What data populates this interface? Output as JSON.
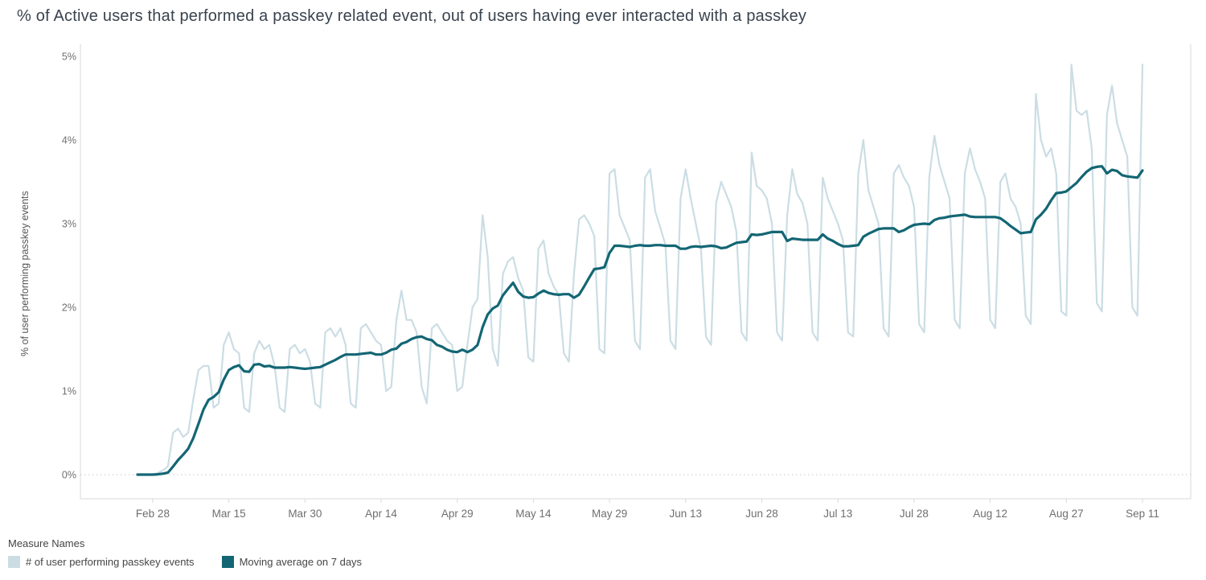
{
  "title": "% of Active users that performed a passkey related event, out of users having ever interacted with a passkey",
  "y_axis": {
    "label": "% of user performing passkey events"
  },
  "legend": {
    "title": "Measure Names"
  },
  "chart_data": {
    "type": "line",
    "title": "% of Active users that performed a passkey related event, out of users having ever interacted with a passkey",
    "xlabel": "",
    "ylabel": "% of user performing passkey events",
    "ylim": [
      0,
      5
    ],
    "y_unit": "percent",
    "grid": "dotted line at 0% only",
    "legend_position": "bottom-left",
    "x_unit": "day",
    "x_start": "Feb 25",
    "x_end": "Sep 11",
    "y_ticks": [
      {
        "value": 0,
        "label": "0%"
      },
      {
        "value": 1,
        "label": "1%"
      },
      {
        "value": 2,
        "label": "2%"
      },
      {
        "value": 3,
        "label": "3%"
      },
      {
        "value": 4,
        "label": "4%"
      },
      {
        "value": 5,
        "label": "5%"
      }
    ],
    "x_ticks": [
      {
        "label": "Feb 28",
        "index": 3
      },
      {
        "label": "Mar 15",
        "index": 18
      },
      {
        "label": "Mar 30",
        "index": 33
      },
      {
        "label": "Apr 14",
        "index": 48
      },
      {
        "label": "Apr 29",
        "index": 63
      },
      {
        "label": "May 14",
        "index": 78
      },
      {
        "label": "May 29",
        "index": 93
      },
      {
        "label": "Jun 13",
        "index": 108
      },
      {
        "label": "Jun 28",
        "index": 123
      },
      {
        "label": "Jul 13",
        "index": 138
      },
      {
        "label": "Jul 28",
        "index": 153
      },
      {
        "label": "Aug 12",
        "index": 168
      },
      {
        "label": "Aug 27",
        "index": 183
      },
      {
        "label": "Sep 11",
        "index": 198
      }
    ],
    "series": [
      {
        "name": "# of user performing passkey events",
        "color": "#cbdde4",
        "values": [
          0,
          0,
          0,
          0,
          0.02,
          0.05,
          0.1,
          0.5,
          0.55,
          0.45,
          0.5,
          0.9,
          1.25,
          1.3,
          1.3,
          0.8,
          0.85,
          1.55,
          1.7,
          1.5,
          1.45,
          0.8,
          0.75,
          1.45,
          1.6,
          1.5,
          1.55,
          1.3,
          0.8,
          0.75,
          1.5,
          1.55,
          1.45,
          1.5,
          1.35,
          0.85,
          0.8,
          1.7,
          1.75,
          1.65,
          1.75,
          1.55,
          0.85,
          0.8,
          1.75,
          1.8,
          1.7,
          1.6,
          1.55,
          1.0,
          1.05,
          1.85,
          2.2,
          1.85,
          1.85,
          1.7,
          1.05,
          0.85,
          1.75,
          1.8,
          1.7,
          1.6,
          1.55,
          1.0,
          1.05,
          1.55,
          2.0,
          2.1,
          3.1,
          2.6,
          1.5,
          1.3,
          2.4,
          2.55,
          2.6,
          2.35,
          2.2,
          1.4,
          1.35,
          2.7,
          2.8,
          2.4,
          2.25,
          2.15,
          1.45,
          1.35,
          2.4,
          3.05,
          3.1,
          3.0,
          2.85,
          1.5,
          1.45,
          3.6,
          3.65,
          3.1,
          2.95,
          2.8,
          1.6,
          1.5,
          3.55,
          3.65,
          3.15,
          2.95,
          2.75,
          1.6,
          1.5,
          3.3,
          3.65,
          3.3,
          3.0,
          2.7,
          1.65,
          1.55,
          3.25,
          3.5,
          3.35,
          3.2,
          2.9,
          1.7,
          1.6,
          3.85,
          3.45,
          3.4,
          3.3,
          3.0,
          1.7,
          1.6,
          3.1,
          3.65,
          3.35,
          3.25,
          3.0,
          1.7,
          1.6,
          3.55,
          3.3,
          3.15,
          3.0,
          2.8,
          1.7,
          1.65,
          3.6,
          4.0,
          3.4,
          3.2,
          3.0,
          1.75,
          1.65,
          3.6,
          3.7,
          3.55,
          3.45,
          3.2,
          1.8,
          1.7,
          3.55,
          4.05,
          3.7,
          3.5,
          3.3,
          1.85,
          1.75,
          3.6,
          3.9,
          3.65,
          3.5,
          3.3,
          1.85,
          1.75,
          3.5,
          3.6,
          3.3,
          3.2,
          3.0,
          1.9,
          1.8,
          4.55,
          4.0,
          3.8,
          3.9,
          3.6,
          1.95,
          1.9,
          4.9,
          4.35,
          4.3,
          4.35,
          3.9,
          2.05,
          1.95,
          4.3,
          4.65,
          4.2,
          4.0,
          3.8,
          2.0,
          1.9,
          4.9
        ]
      },
      {
        "name": "Moving average on 7 days",
        "color": "#136674",
        "derivation": "trailing 7-day moving average of the '# of user performing passkey events' series"
      }
    ]
  }
}
